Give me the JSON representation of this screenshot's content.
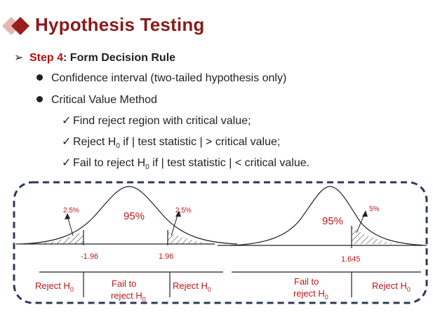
{
  "header": {
    "title": "Hypothesis Testing",
    "accent_color": "#8b1a1a",
    "logo_icon": "diamond-logo-icon"
  },
  "step": {
    "label": "Step 4",
    "text": ": Form Decision Rule"
  },
  "bullets": [
    {
      "text": "Confidence interval (two-tailed hypothesis only)"
    },
    {
      "text": "Critical Value Method"
    }
  ],
  "checks": [
    {
      "text": "Find reject region with critical value;"
    },
    {
      "pre": "Reject H",
      "sub": "0",
      "post": " if | test statistic | > critical value;"
    },
    {
      "pre": "Fail to reject H",
      "sub": "0",
      "post": " if | test statistic | < critical value."
    }
  ],
  "diagram": {
    "left": {
      "tail_left_pct": "2.5%",
      "center_pct": "95%",
      "tail_right_pct": "2.5%",
      "crit_left": "-1.96",
      "crit_right": "1.96",
      "region_reject_left": "Reject H",
      "region_fail_line1": "Fail to",
      "region_fail_line2": "reject H",
      "region_reject_right": "Reject H",
      "subscript": "0"
    },
    "right": {
      "center_pct": "95%",
      "tail_pct": "5%",
      "crit": "1.645",
      "region_fail_line1": "Fail to",
      "region_fail_line2": "reject H",
      "region_reject": "Reject H",
      "subscript": "0"
    },
    "label_color": "#c0161a",
    "border_color": "#2b3a55"
  }
}
